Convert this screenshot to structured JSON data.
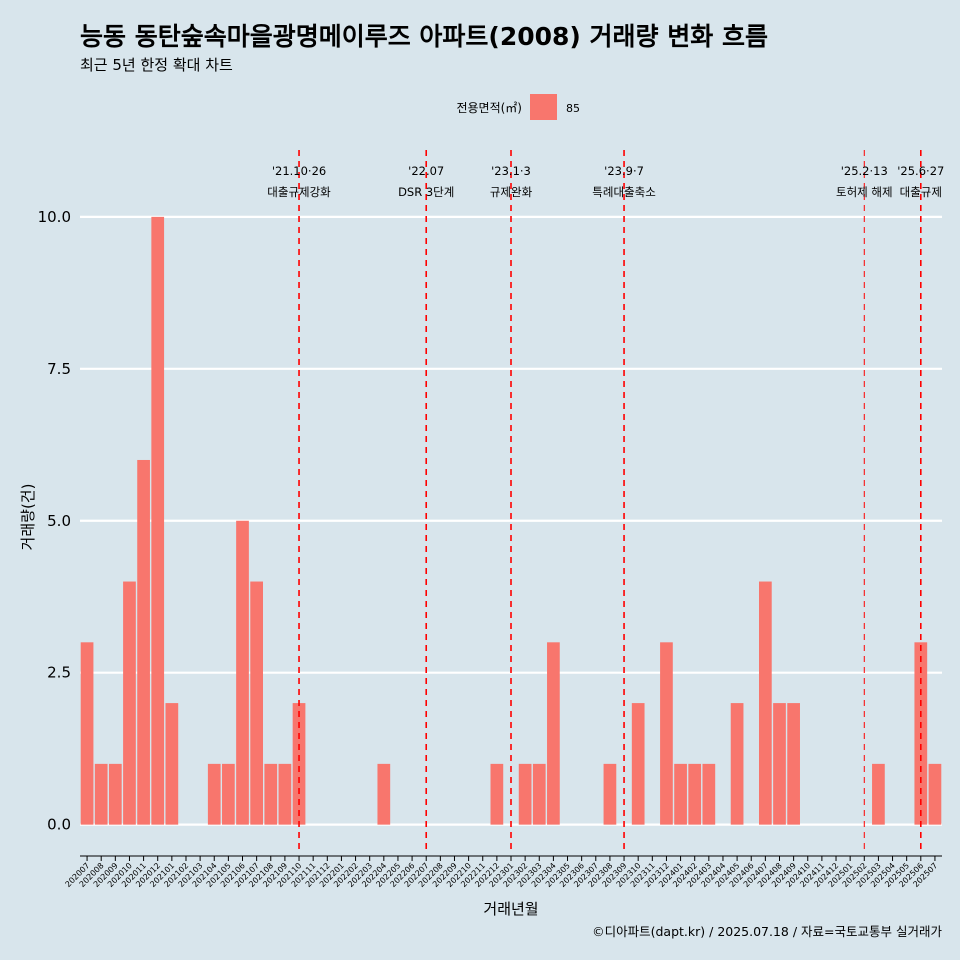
{
  "chart_data": {
    "type": "bar",
    "title": "능동 동탄숲속마을광명메이루즈 아파트(2008) 거래량 변화 흐름",
    "subtitle": "최근 5년 한정 확대 차트",
    "xlabel": "거래년월",
    "ylabel": "거래량(건)",
    "caption": "©디아파트(dapt.kr) / 2025.07.18 / 자료=국토교통부 실거래가",
    "legend": {
      "title": "전용면적(㎡)",
      "position": "top",
      "entries": [
        {
          "label": "85",
          "color": "#f8766d"
        }
      ]
    },
    "ylim": [
      -0.45,
      11.1
    ],
    "yticks": [
      0,
      2.5,
      5,
      7.5,
      10
    ],
    "ytick_labels": [
      "0.0",
      "2.5",
      "5.0",
      "7.5",
      "10.0"
    ],
    "grid": true,
    "categories": [
      "202007",
      "202008",
      "202009",
      "202010",
      "202011",
      "202012",
      "202101",
      "202102",
      "202103",
      "202104",
      "202105",
      "202106",
      "202107",
      "202108",
      "202109",
      "202110",
      "202111",
      "202112",
      "202201",
      "202202",
      "202203",
      "202204",
      "202205",
      "202206",
      "202207",
      "202208",
      "202209",
      "202210",
      "202211",
      "202212",
      "202301",
      "202302",
      "202303",
      "202304",
      "202305",
      "202306",
      "202307",
      "202308",
      "202309",
      "202310",
      "202311",
      "202312",
      "202401",
      "202402",
      "202403",
      "202404",
      "202405",
      "202406",
      "202407",
      "202408",
      "202409",
      "202410",
      "202411",
      "202412",
      "202501",
      "202502",
      "202503",
      "202504",
      "202505",
      "202506",
      "202507"
    ],
    "series": [
      {
        "name": "85",
        "color": "#f8766d",
        "values": [
          3,
          1,
          1,
          4,
          6,
          10,
          2,
          0,
          0,
          1,
          1,
          5,
          4,
          1,
          1,
          2,
          0,
          0,
          0,
          0,
          0,
          1,
          0,
          0,
          0,
          0,
          0,
          0,
          0,
          1,
          0,
          1,
          1,
          3,
          0,
          0,
          0,
          1,
          0,
          2,
          0,
          3,
          1,
          1,
          1,
          0,
          2,
          0,
          4,
          2,
          2,
          0,
          0,
          0,
          0,
          0,
          1,
          0,
          0,
          3,
          1
        ]
      }
    ],
    "events": [
      {
        "date": "202110",
        "line1": "'21.10·26",
        "line2": "대출규제강화",
        "style": "thick"
      },
      {
        "date": "202207",
        "line1": "'22.07",
        "line2": "DSR 3단계",
        "style": "thick"
      },
      {
        "date": "202301",
        "line1": "'23.1·3",
        "line2": "규제완화",
        "style": "thick"
      },
      {
        "date": "202309",
        "line1": "'23.9·7",
        "line2": "특례대출축소",
        "style": "thick"
      },
      {
        "date": "202502",
        "line1": "'25.2·13",
        "line2": "토허제 해제",
        "style": "thin"
      },
      {
        "date": "202506",
        "line1": "'25.6·27",
        "line2": "대출규제",
        "style": "thick"
      }
    ]
  }
}
